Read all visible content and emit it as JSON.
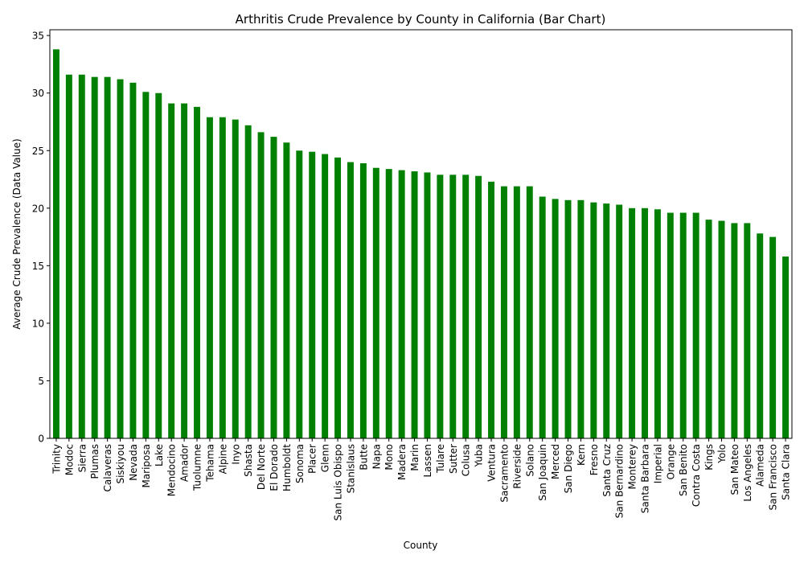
{
  "chart_data": {
    "type": "bar",
    "title": "Arthritis Crude Prevalence by County in California (Bar Chart)",
    "xlabel": "County",
    "ylabel": "Average Crude Prevalence (Data Value)",
    "ylim": [
      0,
      35.5
    ],
    "yticks": [
      0,
      5,
      10,
      15,
      20,
      25,
      30,
      35
    ],
    "bar_color": "#008000",
    "grid": false,
    "legend": "none",
    "categories": [
      "Trinity",
      "Modoc",
      "Sierra",
      "Plumas",
      "Calaveras",
      "Siskiyou",
      "Nevada",
      "Mariposa",
      "Lake",
      "Mendocino",
      "Amador",
      "Tuolumne",
      "Tehama",
      "Alpine",
      "Inyo",
      "Shasta",
      "Del Norte",
      "El Dorado",
      "Humboldt",
      "Sonoma",
      "Placer",
      "Glenn",
      "San Luis Obispo",
      "Stanislaus",
      "Butte",
      "Napa",
      "Mono",
      "Madera",
      "Marin",
      "Lassen",
      "Tulare",
      "Sutter",
      "Colusa",
      "Yuba",
      "Ventura",
      "Sacramento",
      "Riverside",
      "Solano",
      "San Joaquin",
      "Merced",
      "San Diego",
      "Kern",
      "Fresno",
      "Santa Cruz",
      "San Bernardino",
      "Monterey",
      "Santa Barbara",
      "Imperial",
      "Orange",
      "San Benito",
      "Contra Costa",
      "Kings",
      "Yolo",
      "San Mateo",
      "Los Angeles",
      "Alameda",
      "San Francisco",
      "Santa Clara"
    ],
    "values": [
      33.8,
      31.6,
      31.6,
      31.4,
      31.4,
      31.2,
      30.9,
      30.1,
      30.0,
      29.1,
      29.1,
      28.8,
      27.9,
      27.9,
      27.7,
      27.2,
      26.6,
      26.2,
      25.7,
      25.0,
      24.9,
      24.7,
      24.4,
      24.0,
      23.9,
      23.5,
      23.4,
      23.3,
      23.2,
      23.1,
      22.9,
      22.9,
      22.9,
      22.8,
      22.3,
      21.9,
      21.9,
      21.9,
      21.0,
      20.8,
      20.7,
      20.7,
      20.5,
      20.4,
      20.3,
      20.0,
      20.0,
      19.9,
      19.6,
      19.6,
      19.6,
      19.0,
      18.9,
      18.7,
      18.7,
      17.8,
      17.5,
      15.8
    ]
  }
}
